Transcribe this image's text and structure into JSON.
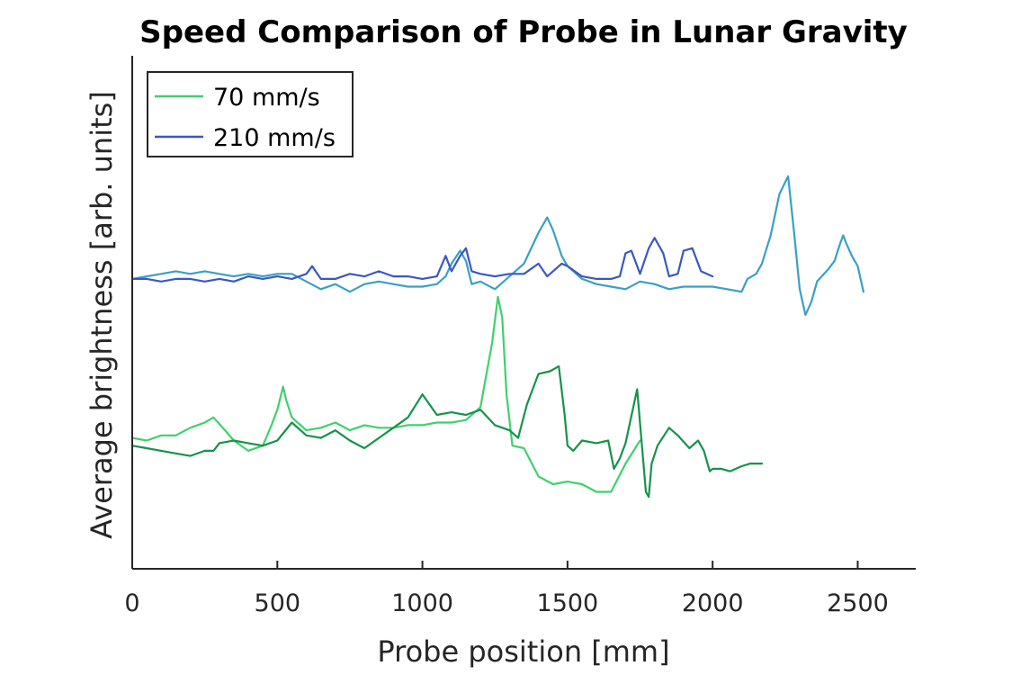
{
  "chart_data": {
    "type": "line",
    "title": "Speed Comparison of Probe in Lunar Gravity",
    "xlabel": "Probe position [mm]",
    "ylabel": "Average brightness [arb. units]",
    "xlim": [
      0,
      2700
    ],
    "ylim": [
      0,
      10
    ],
    "xticks": [
      0,
      500,
      1000,
      1500,
      2000,
      2500
    ],
    "xtick_labels": [
      "0",
      "500",
      "1000",
      "1500",
      "2000",
      "2500"
    ],
    "show_yticks": false,
    "grid": false,
    "legend": {
      "location": "top-left",
      "entries": [
        {
          "label": "70 mm/s",
          "color": "#3fd06e"
        },
        {
          "label": "210 mm/s",
          "color": "#3a57c4"
        }
      ]
    },
    "series": [
      {
        "color": "#3fd06e",
        "x": [
          0,
          50,
          100,
          150,
          200,
          250,
          280,
          320,
          350,
          400,
          450,
          480,
          500,
          520,
          530,
          550,
          600,
          650,
          700,
          750,
          800,
          850,
          900,
          950,
          1000,
          1050,
          1100,
          1150,
          1200,
          1240,
          1260,
          1275,
          1290,
          1310,
          1350,
          1400,
          1450,
          1500,
          1550,
          1600,
          1650,
          1700,
          1750
        ],
        "y": [
          2.55,
          2.5,
          2.6,
          2.6,
          2.75,
          2.85,
          2.95,
          2.7,
          2.5,
          2.3,
          2.4,
          2.8,
          3.1,
          3.55,
          3.3,
          2.95,
          2.7,
          2.75,
          2.85,
          2.7,
          2.8,
          2.75,
          2.75,
          2.8,
          2.8,
          2.85,
          2.85,
          2.9,
          3.15,
          4.4,
          5.3,
          4.9,
          3.4,
          2.4,
          2.35,
          1.8,
          1.65,
          1.7,
          1.65,
          1.5,
          1.5,
          2.05,
          2.5
        ]
      },
      {
        "color": "#16934a",
        "x": [
          0,
          50,
          100,
          150,
          200,
          250,
          280,
          300,
          350,
          400,
          450,
          500,
          550,
          600,
          650,
          700,
          750,
          800,
          850,
          900,
          950,
          1000,
          1050,
          1100,
          1150,
          1200,
          1250,
          1300,
          1330,
          1360,
          1400,
          1440,
          1470,
          1490,
          1500,
          1520,
          1550,
          1600,
          1640,
          1660,
          1680,
          1700,
          1740,
          1770,
          1780,
          1790,
          1810,
          1850,
          1880,
          1920,
          1950,
          1970,
          1990,
          2000,
          2030,
          2060,
          2100,
          2130,
          2170
        ],
        "y": [
          2.4,
          2.35,
          2.3,
          2.25,
          2.2,
          2.3,
          2.3,
          2.45,
          2.5,
          2.45,
          2.4,
          2.5,
          2.85,
          2.6,
          2.55,
          2.7,
          2.5,
          2.35,
          2.55,
          2.75,
          2.95,
          3.4,
          3.0,
          3.05,
          3.0,
          3.1,
          2.8,
          2.7,
          2.55,
          3.2,
          3.8,
          3.85,
          3.95,
          3.0,
          2.4,
          2.3,
          2.5,
          2.45,
          2.5,
          1.95,
          2.15,
          2.45,
          3.5,
          1.5,
          1.4,
          2.05,
          2.4,
          2.75,
          2.6,
          2.35,
          2.5,
          2.3,
          1.9,
          1.95,
          1.95,
          1.9,
          2.0,
          2.05,
          2.05
        ]
      },
      {
        "color": "#3a9fc8",
        "x": [
          0,
          50,
          100,
          150,
          200,
          250,
          300,
          350,
          400,
          450,
          500,
          550,
          600,
          650,
          700,
          750,
          800,
          850,
          900,
          950,
          1000,
          1050,
          1080,
          1100,
          1130,
          1150,
          1170,
          1200,
          1250,
          1300,
          1350,
          1400,
          1430,
          1450,
          1480,
          1500,
          1550,
          1600,
          1650,
          1700,
          1750,
          1800,
          1850,
          1900,
          1950,
          2000,
          2050,
          2100,
          2120,
          2150,
          2170,
          2200,
          2230,
          2260,
          2280,
          2300,
          2320,
          2340,
          2360,
          2400,
          2420,
          2440,
          2450,
          2460,
          2480,
          2500,
          2520
        ],
        "y": [
          5.65,
          5.7,
          5.75,
          5.8,
          5.75,
          5.8,
          5.75,
          5.7,
          5.75,
          5.7,
          5.75,
          5.75,
          5.6,
          5.45,
          5.55,
          5.4,
          5.55,
          5.6,
          5.55,
          5.5,
          5.5,
          5.55,
          5.7,
          5.95,
          6.2,
          6.0,
          5.55,
          5.6,
          5.45,
          5.7,
          5.95,
          6.55,
          6.85,
          6.6,
          6.1,
          5.9,
          5.65,
          5.55,
          5.5,
          5.45,
          5.6,
          5.55,
          5.45,
          5.5,
          5.5,
          5.5,
          5.45,
          5.4,
          5.65,
          5.75,
          5.95,
          6.5,
          7.3,
          7.65,
          6.6,
          5.45,
          4.95,
          5.2,
          5.6,
          5.85,
          6.0,
          6.35,
          6.5,
          6.35,
          6.1,
          5.9,
          5.4
        ]
      },
      {
        "color": "#3a57c4",
        "x": [
          0,
          50,
          100,
          150,
          200,
          250,
          300,
          350,
          400,
          450,
          500,
          550,
          600,
          620,
          650,
          700,
          750,
          800,
          850,
          900,
          950,
          1000,
          1050,
          1080,
          1100,
          1130,
          1150,
          1170,
          1200,
          1250,
          1300,
          1350,
          1400,
          1430,
          1450,
          1480,
          1500,
          1550,
          1600,
          1650,
          1680,
          1700,
          1720,
          1750,
          1780,
          1800,
          1830,
          1850,
          1880,
          1900,
          1930,
          1960,
          1980,
          2000
        ],
        "y": [
          5.65,
          5.65,
          5.6,
          5.65,
          5.65,
          5.6,
          5.65,
          5.6,
          5.7,
          5.65,
          5.7,
          5.65,
          5.75,
          5.9,
          5.65,
          5.65,
          5.75,
          5.7,
          5.8,
          5.7,
          5.7,
          5.65,
          5.7,
          6.1,
          5.8,
          6.1,
          6.25,
          5.8,
          5.75,
          5.7,
          5.75,
          5.75,
          5.95,
          5.7,
          5.8,
          5.95,
          5.9,
          5.7,
          5.65,
          5.65,
          5.7,
          6.15,
          6.2,
          5.75,
          6.25,
          6.45,
          6.15,
          5.7,
          5.75,
          6.2,
          6.25,
          5.8,
          5.75,
          5.7
        ]
      }
    ]
  }
}
